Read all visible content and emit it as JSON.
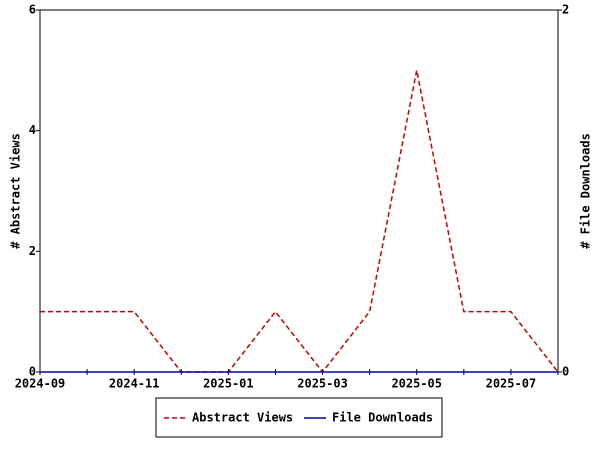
{
  "chart_data": {
    "type": "line",
    "x": [
      "2024-09",
      null,
      "2024-11",
      null,
      "2025-01",
      null,
      "2025-03",
      null,
      "2025-05",
      null,
      "2025-07",
      null
    ],
    "ylabel": "# Abstract Views",
    "y2label": "# File Downloads",
    "ylim": [
      0,
      6
    ],
    "yticks": [
      0,
      2,
      4,
      6
    ],
    "y2lim": [
      0,
      2
    ],
    "y2ticks": [
      0,
      2
    ],
    "grid": false,
    "legend": "bottom",
    "series": [
      {
        "name": "Abstract Views",
        "color": "#cc0000",
        "dash": true,
        "values": [
          1,
          1,
          1,
          0,
          0,
          1,
          0,
          1,
          5,
          1,
          1,
          0
        ]
      },
      {
        "name": "File Downloads",
        "color": "#0000aa",
        "dash": false,
        "axis": "y2",
        "values": [
          0,
          0,
          0,
          0,
          0,
          0,
          0,
          0,
          0,
          0,
          0,
          0
        ]
      }
    ]
  }
}
